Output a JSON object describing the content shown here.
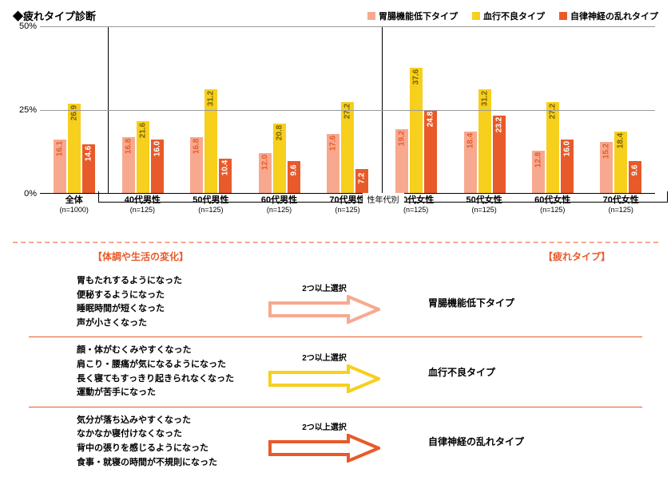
{
  "title": "◆疲れタイプ診断",
  "legend": [
    {
      "label": "胃腸機能低下タイプ",
      "color": "#f7a98f"
    },
    {
      "label": "血行不良タイプ",
      "color": "#f7cf1d"
    },
    {
      "label": "自律神経の乱れタイプ",
      "color": "#e85a2a"
    }
  ],
  "chart": {
    "ymax": 50,
    "yticks": [
      0,
      25,
      50
    ],
    "ylabels": [
      "0%",
      "25%",
      "50%"
    ],
    "groups": [
      {
        "label": "全体",
        "n": "(n=1000)",
        "vals": [
          16.1,
          26.9,
          14.6
        ],
        "sep": false
      },
      {
        "label": "40代男性",
        "n": "(n=125)",
        "vals": [
          16.8,
          21.6,
          16.0
        ],
        "sep": true
      },
      {
        "label": "50代男性",
        "n": "(n=125)",
        "vals": [
          16.8,
          31.2,
          10.4
        ],
        "sep": false
      },
      {
        "label": "60代男性",
        "n": "(n=125)",
        "vals": [
          12.0,
          20.8,
          9.6
        ],
        "sep": false
      },
      {
        "label": "70代男性",
        "n": "(n=125)",
        "vals": [
          17.6,
          27.2,
          7.2
        ],
        "sep": false
      },
      {
        "label": "40代女性",
        "n": "(n=125)",
        "vals": [
          19.2,
          37.6,
          24.8
        ],
        "sep": true
      },
      {
        "label": "50代女性",
        "n": "(n=125)",
        "vals": [
          18.4,
          31.2,
          23.2
        ],
        "sep": false
      },
      {
        "label": "60代女性",
        "n": "(n=125)",
        "vals": [
          12.8,
          27.2,
          16.0
        ],
        "sep": false
      },
      {
        "label": "70代女性",
        "n": "(n=125)",
        "vals": [
          15.2,
          18.4,
          9.6
        ],
        "sep": false
      }
    ],
    "bracket_label": "性年代別"
  },
  "flow": {
    "head_left": "【体調や生活の変化】",
    "head_right": "【疲れタイプ】",
    "arrow_caption": "2つ以上選択",
    "rows": [
      {
        "color": "#f7a98f",
        "type": "胃腸機能低下タイプ",
        "symptoms": [
          "胃もたれするようになった",
          "便秘するようになった",
          "睡眠時間が短くなった",
          "声が小さくなった"
        ]
      },
      {
        "color": "#f7cf1d",
        "type": "血行不良タイプ",
        "symptoms": [
          "顔・体がむくみやすくなった",
          "肩こり・腰痛が気になるようになった",
          "長く寝てもすっきり起きられなくなった",
          "運動が苦手になった"
        ]
      },
      {
        "color": "#e85a2a",
        "type": "自律神経の乱れタイプ",
        "symptoms": [
          "気分が落ち込みやすくなった",
          "なかなか寝付けなくなった",
          "背中の張りを感じるようになった",
          "食事・就寝の時間が不規則になった"
        ]
      }
    ]
  }
}
